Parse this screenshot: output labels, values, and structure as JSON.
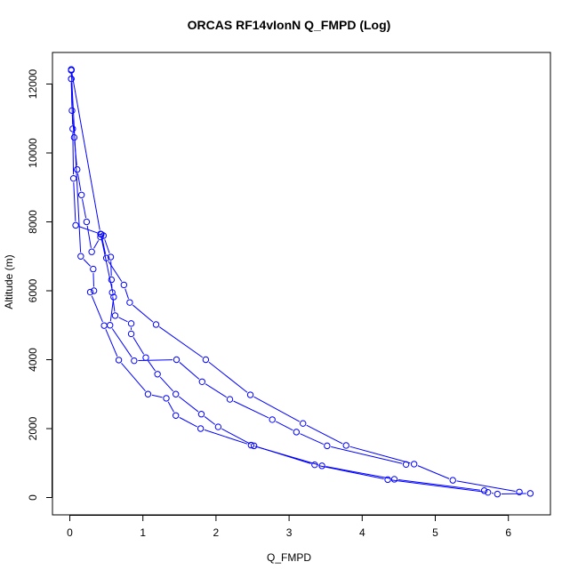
{
  "chart_data": {
    "type": "line",
    "title": "ORCAS RF14vIonN Q_FMPD (Log)",
    "xlabel": "Q_FMPD",
    "ylabel": "Altitude (m)",
    "xlim": [
      0,
      6.5
    ],
    "ylim": [
      0,
      12700
    ],
    "x_ticks": [
      0,
      1,
      2,
      3,
      4,
      5,
      6
    ],
    "y_ticks": [
      0,
      2000,
      4000,
      6000,
      8000,
      10000,
      12000
    ],
    "grid": false,
    "legend": "none",
    "color": "#0000ff",
    "series": [
      {
        "points": [
          [
            6.3,
            120
          ],
          [
            5.85,
            100
          ],
          [
            5.72,
            150
          ],
          [
            4.35,
            520
          ],
          [
            3.35,
            950
          ],
          [
            2.52,
            1500
          ],
          [
            2.03,
            2050
          ],
          [
            1.8,
            2420
          ],
          [
            1.45,
            3000
          ],
          [
            1.2,
            3580
          ],
          [
            1.04,
            4060
          ],
          [
            0.84,
            4750
          ],
          [
            0.84,
            5050
          ],
          [
            0.62,
            5280
          ],
          [
            0.58,
            5950
          ],
          [
            0.57,
            6320
          ],
          [
            0.56,
            6980
          ],
          [
            0.46,
            7600
          ],
          [
            0.42,
            7560
          ],
          [
            0.3,
            7130
          ],
          [
            0.23,
            8000
          ],
          [
            0.16,
            8780
          ],
          [
            0.1,
            9520
          ],
          [
            0.06,
            10450
          ],
          [
            0.03,
            11230
          ],
          [
            0.02,
            12150
          ],
          [
            0.02,
            12400
          ]
        ]
      },
      {
        "points": [
          [
            6.15,
            160
          ],
          [
            5.24,
            500
          ],
          [
            4.71,
            970
          ],
          [
            3.78,
            1510
          ],
          [
            3.19,
            2150
          ],
          [
            2.47,
            2980
          ],
          [
            1.86,
            4000
          ],
          [
            1.18,
            5020
          ],
          [
            0.82,
            5660
          ],
          [
            0.74,
            6170
          ],
          [
            0.5,
            6950
          ],
          [
            0.43,
            7640
          ],
          [
            0.08,
            7900
          ],
          [
            0.05,
            9260
          ],
          [
            0.04,
            10700
          ],
          [
            0.02,
            12150
          ],
          [
            0.02,
            12420
          ]
        ]
      },
      {
        "points": [
          [
            5.67,
            200
          ],
          [
            4.44,
            530
          ],
          [
            3.45,
            920
          ],
          [
            2.48,
            1520
          ],
          [
            1.79,
            2000
          ],
          [
            1.45,
            2380
          ],
          [
            1.32,
            2880
          ],
          [
            1.07,
            3000
          ],
          [
            0.67,
            3990
          ],
          [
            0.47,
            4990
          ],
          [
            0.28,
            5960
          ],
          [
            0.33,
            6000
          ],
          [
            0.32,
            6630
          ],
          [
            0.15,
            7000
          ],
          [
            0.02,
            12400
          ]
        ]
      },
      {
        "points": [
          [
            4.6,
            960
          ],
          [
            3.52,
            1500
          ],
          [
            3.1,
            1900
          ],
          [
            2.77,
            2260
          ],
          [
            2.19,
            2850
          ],
          [
            1.81,
            3360
          ],
          [
            1.46,
            4000
          ],
          [
            0.88,
            3970
          ],
          [
            0.55,
            5000
          ],
          [
            0.6,
            5820
          ],
          [
            0.42,
            7650
          ],
          [
            0.02,
            12420
          ]
        ]
      }
    ]
  }
}
